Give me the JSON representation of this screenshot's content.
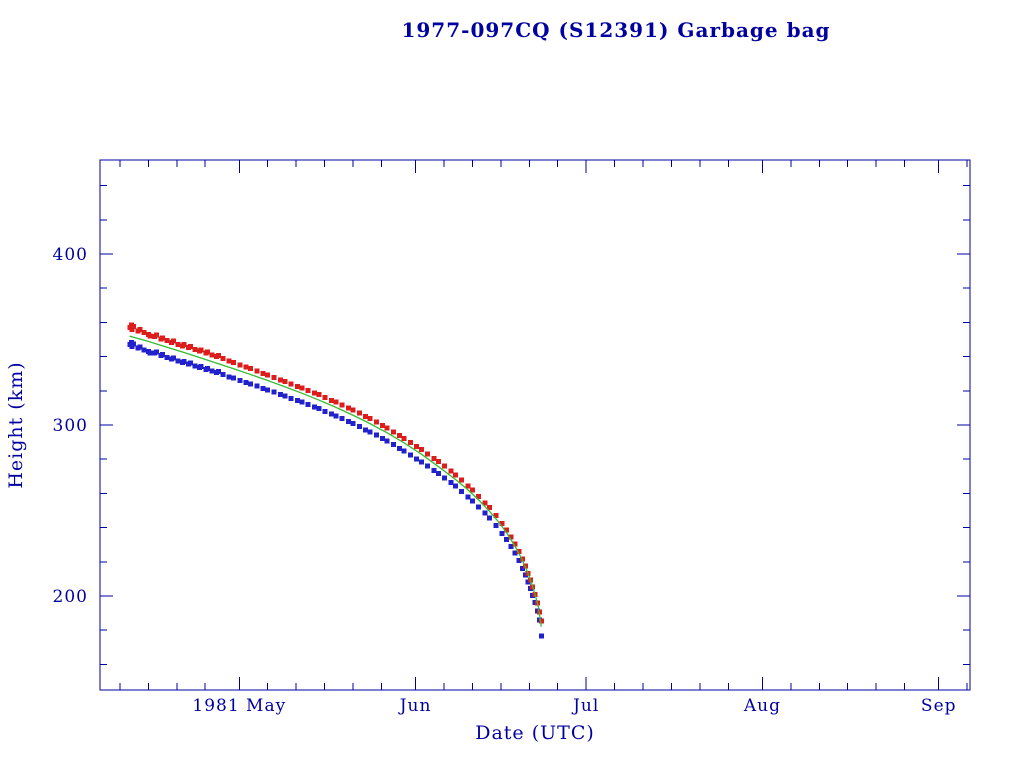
{
  "page": {
    "background": "#ffffff"
  },
  "chart_data": {
    "type": "scatter",
    "title": "1977-097CQ (S12391) Garbage bag",
    "xlabel": "Date (UTC)",
    "ylabel": "Height (km)",
    "x_unit": "days since 1981-04-12 (UTC)",
    "grid": false,
    "legend": "none",
    "colors": {
      "axis": "#0000a0",
      "red": "#dd1c1c",
      "blue": "#2222cc",
      "green": "#33bb33"
    },
    "axes": {
      "x": {
        "domain": [
          -5.5,
          147.5
        ],
        "major_ticks": [
          {
            "day": 19,
            "label": "1981 May"
          },
          {
            "day": 50,
            "label": "Jun"
          },
          {
            "day": 80,
            "label": "Jul"
          },
          {
            "day": 111,
            "label": "Aug"
          },
          {
            "day": 142,
            "label": "Sep"
          }
        ],
        "minor_tick_days": [
          -2,
          3,
          8,
          13,
          24,
          29,
          34,
          39,
          44,
          55,
          60,
          65,
          70,
          75,
          85,
          90,
          95,
          100,
          105,
          116,
          121,
          126,
          131,
          136,
          147
        ]
      },
      "y": {
        "domain": [
          145,
          455
        ],
        "major_ticks": [
          200,
          300,
          400
        ],
        "minor_ticks": [
          160,
          180,
          220,
          240,
          260,
          280,
          320,
          340,
          360,
          380,
          420,
          440
        ]
      }
    },
    "series": [
      {
        "name": "red squares",
        "color_key": "red",
        "marker": "square",
        "points": [
          [
            -0.2,
            357.0
          ],
          [
            0.0,
            358.5
          ],
          [
            0.1,
            356.0
          ],
          [
            0.4,
            357.5
          ],
          [
            1.2,
            355.0
          ],
          [
            1.5,
            355.8
          ],
          [
            2.2,
            354.0
          ],
          [
            3.0,
            353.0
          ],
          [
            3.3,
            352.0
          ],
          [
            4.1,
            351.8
          ],
          [
            4.4,
            352.6
          ],
          [
            5.2,
            350.4
          ],
          [
            5.5,
            351.0
          ],
          [
            6.3,
            349.3
          ],
          [
            7.1,
            348.4
          ],
          [
            7.4,
            349.0
          ],
          [
            8.2,
            347.2
          ],
          [
            9.0,
            346.3
          ],
          [
            9.3,
            347.0
          ],
          [
            10.1,
            345.2
          ],
          [
            10.4,
            345.9
          ],
          [
            11.2,
            344.1
          ],
          [
            12.0,
            343.2
          ],
          [
            12.3,
            343.9
          ],
          [
            13.1,
            342.1
          ],
          [
            13.4,
            342.7
          ],
          [
            14.2,
            340.9
          ],
          [
            15.0,
            340.0
          ],
          [
            15.3,
            340.6
          ],
          [
            16.1,
            338.9
          ],
          [
            17.2,
            337.4
          ],
          [
            18.0,
            336.5
          ],
          [
            19.1,
            335.2
          ],
          [
            20.2,
            333.9
          ],
          [
            21.0,
            333.0
          ],
          [
            22.1,
            331.6
          ],
          [
            23.2,
            330.1
          ],
          [
            24.0,
            329.2
          ],
          [
            25.1,
            327.8
          ],
          [
            26.2,
            326.3
          ],
          [
            27.0,
            325.5
          ],
          [
            28.1,
            324.0
          ],
          [
            29.2,
            322.5
          ],
          [
            30.0,
            321.7
          ],
          [
            31.1,
            320.1
          ],
          [
            32.2,
            318.6
          ],
          [
            33.0,
            317.8
          ],
          [
            34.1,
            316.0
          ],
          [
            35.2,
            314.4
          ],
          [
            36.0,
            313.5
          ],
          [
            37.1,
            311.7
          ],
          [
            38.2,
            309.9
          ],
          [
            39.0,
            308.8
          ],
          [
            40.1,
            306.9
          ],
          [
            41.2,
            305.0
          ],
          [
            42.0,
            303.8
          ],
          [
            43.1,
            301.8
          ],
          [
            44.2,
            299.7
          ],
          [
            45.0,
            298.2
          ],
          [
            46.1,
            296.0
          ],
          [
            47.2,
            293.8
          ],
          [
            48.0,
            292.2
          ],
          [
            49.1,
            289.8
          ],
          [
            50.2,
            287.4
          ],
          [
            51.0,
            285.6
          ],
          [
            52.1,
            283.1
          ],
          [
            53.2,
            280.5
          ],
          [
            54.0,
            278.6
          ],
          [
            55.1,
            275.9
          ],
          [
            56.2,
            273.0
          ],
          [
            57.0,
            270.8
          ],
          [
            58.1,
            267.7
          ],
          [
            59.2,
            264.4
          ],
          [
            60.0,
            261.9
          ],
          [
            61.1,
            258.3
          ],
          [
            62.2,
            254.5
          ],
          [
            63.0,
            251.6
          ],
          [
            64.1,
            247.2
          ],
          [
            65.2,
            242.4
          ],
          [
            66.0,
            238.6
          ],
          [
            66.8,
            234.5
          ],
          [
            67.5,
            230.5
          ],
          [
            68.2,
            226.0
          ],
          [
            68.8,
            221.5
          ],
          [
            69.3,
            217.5
          ],
          [
            69.8,
            213.2
          ],
          [
            70.2,
            209.4
          ],
          [
            70.6,
            205.3
          ],
          [
            71.0,
            200.9
          ],
          [
            71.4,
            196.0
          ],
          [
            71.8,
            190.5
          ],
          [
            72.1,
            185.5
          ]
        ]
      },
      {
        "name": "blue squares",
        "color_key": "blue",
        "marker": "square",
        "points": [
          [
            -0.2,
            347.0
          ],
          [
            0.0,
            348.2
          ],
          [
            0.1,
            346.0
          ],
          [
            0.4,
            347.3
          ],
          [
            1.2,
            345.1
          ],
          [
            1.5,
            345.7
          ],
          [
            2.2,
            344.0
          ],
          [
            3.0,
            343.1
          ],
          [
            3.3,
            342.2
          ],
          [
            4.1,
            342.0
          ],
          [
            4.4,
            342.8
          ],
          [
            5.2,
            340.6
          ],
          [
            5.5,
            341.2
          ],
          [
            6.3,
            339.5
          ],
          [
            7.1,
            338.7
          ],
          [
            7.4,
            339.2
          ],
          [
            8.2,
            337.5
          ],
          [
            9.0,
            336.6
          ],
          [
            9.3,
            337.2
          ],
          [
            10.1,
            335.6
          ],
          [
            10.4,
            336.2
          ],
          [
            11.2,
            334.5
          ],
          [
            12.0,
            333.7
          ],
          [
            12.3,
            334.3
          ],
          [
            13.1,
            332.6
          ],
          [
            13.4,
            333.1
          ],
          [
            14.2,
            331.5
          ],
          [
            15.0,
            330.7
          ],
          [
            15.3,
            331.2
          ],
          [
            16.1,
            329.6
          ],
          [
            17.2,
            328.2
          ],
          [
            18.0,
            327.4
          ],
          [
            19.1,
            326.1
          ],
          [
            20.2,
            324.9
          ],
          [
            21.0,
            324.1
          ],
          [
            22.1,
            322.8
          ],
          [
            23.2,
            321.4
          ],
          [
            24.0,
            320.6
          ],
          [
            25.1,
            319.2
          ],
          [
            26.2,
            317.8
          ],
          [
            27.0,
            317.0
          ],
          [
            28.1,
            315.6
          ],
          [
            29.2,
            314.2
          ],
          [
            30.0,
            313.4
          ],
          [
            31.1,
            311.9
          ],
          [
            32.2,
            310.4
          ],
          [
            33.0,
            309.6
          ],
          [
            34.1,
            307.9
          ],
          [
            35.2,
            306.3
          ],
          [
            36.0,
            305.4
          ],
          [
            37.1,
            303.7
          ],
          [
            38.2,
            302.0
          ],
          [
            39.0,
            300.9
          ],
          [
            40.1,
            299.1
          ],
          [
            41.2,
            297.2
          ],
          [
            42.0,
            296.0
          ],
          [
            43.1,
            294.1
          ],
          [
            44.2,
            292.1
          ],
          [
            45.0,
            290.7
          ],
          [
            46.1,
            288.5
          ],
          [
            47.2,
            286.4
          ],
          [
            48.0,
            284.8
          ],
          [
            49.1,
            282.5
          ],
          [
            50.2,
            280.2
          ],
          [
            51.0,
            278.5
          ],
          [
            52.1,
            276.0
          ],
          [
            53.2,
            273.5
          ],
          [
            54.0,
            271.7
          ],
          [
            55.1,
            269.1
          ],
          [
            56.2,
            266.3
          ],
          [
            57.0,
            264.2
          ],
          [
            58.1,
            261.2
          ],
          [
            59.2,
            258.0
          ],
          [
            60.0,
            255.6
          ],
          [
            61.1,
            252.1
          ],
          [
            62.2,
            248.4
          ],
          [
            63.0,
            245.6
          ],
          [
            64.1,
            241.3
          ],
          [
            65.2,
            236.6
          ],
          [
            66.0,
            232.9
          ],
          [
            66.8,
            228.9
          ],
          [
            67.5,
            225.0
          ],
          [
            68.2,
            220.6
          ],
          [
            68.8,
            216.2
          ],
          [
            69.3,
            212.3
          ],
          [
            69.8,
            208.1
          ],
          [
            70.2,
            204.4
          ],
          [
            70.6,
            200.4
          ],
          [
            71.0,
            196.1
          ],
          [
            71.4,
            191.3
          ],
          [
            71.8,
            185.9
          ],
          [
            72.1,
            176.5
          ]
        ]
      }
    ],
    "fit_line": {
      "name": "green decay curve",
      "color_key": "green",
      "points": [
        [
          -0.3,
          352.0
        ],
        [
          3,
          348.9
        ],
        [
          6,
          345.8
        ],
        [
          9,
          342.7
        ],
        [
          12,
          339.5
        ],
        [
          15,
          336.2
        ],
        [
          18,
          332.9
        ],
        [
          21,
          329.5
        ],
        [
          24,
          326.0
        ],
        [
          27,
          322.4
        ],
        [
          30,
          318.6
        ],
        [
          33,
          314.6
        ],
        [
          36,
          310.3
        ],
        [
          39,
          305.7
        ],
        [
          42,
          300.8
        ],
        [
          45,
          295.4
        ],
        [
          48,
          289.5
        ],
        [
          51,
          283.0
        ],
        [
          54,
          275.7
        ],
        [
          57,
          268.2
        ],
        [
          59,
          262.7
        ],
        [
          61,
          256.5
        ],
        [
          63,
          249.5
        ],
        [
          64.5,
          243.7
        ],
        [
          66,
          237.0
        ],
        [
          67.5,
          229.0
        ],
        [
          68.5,
          222.8
        ],
        [
          69.5,
          215.5
        ],
        [
          70.3,
          208.5
        ],
        [
          71,
          201.0
        ],
        [
          71.6,
          193.5
        ],
        [
          72.1,
          182.0
        ]
      ]
    }
  }
}
